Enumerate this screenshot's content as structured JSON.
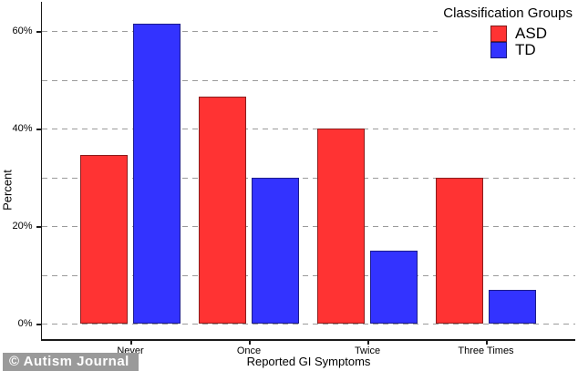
{
  "watermark": {
    "text": "© Autism Journal"
  },
  "chart_data": {
    "type": "bar",
    "title": "",
    "categories": [
      "Never",
      "Once",
      "Twice",
      "Three Times"
    ],
    "series": [
      {
        "name": "ASD",
        "color": "#ff3333",
        "values": [
          34.5,
          46.5,
          40,
          30
        ]
      },
      {
        "name": "TD",
        "color": "#3333ff",
        "values": [
          61.5,
          30,
          15,
          7
        ]
      }
    ],
    "xlabel": "Reported GI Symptoms",
    "ylabel": "Percent",
    "ylim": [
      0,
      66
    ],
    "yticks": [
      0,
      20,
      40,
      60
    ],
    "ytick_labels": [
      "0%",
      "20%",
      "40%",
      "60%"
    ],
    "gridline_step": 10,
    "grid_style": "dashed",
    "legend_title": "Classification Groups",
    "legend_position": "top-right",
    "grid_color": "#9b9b9b",
    "axis_color": "#1a1a1a"
  }
}
